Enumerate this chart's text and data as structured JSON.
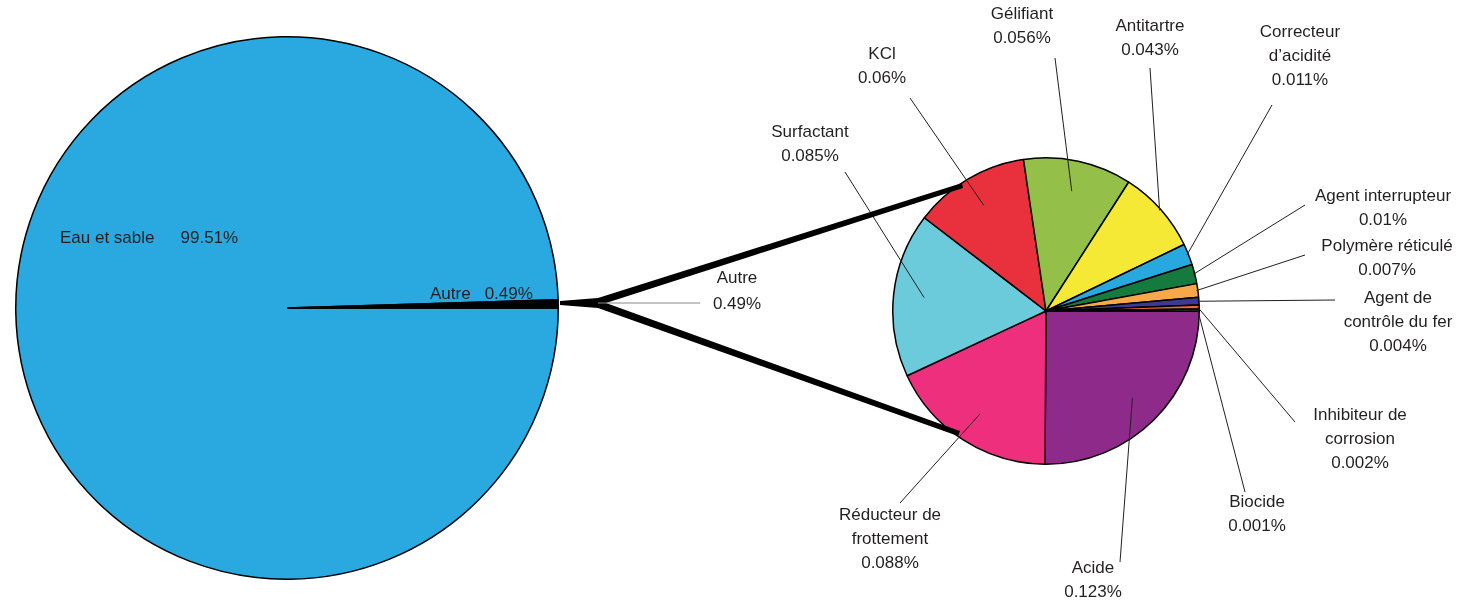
{
  "chart_data": [
    {
      "type": "pie",
      "categories": [
        "Eau et sable",
        "Autre"
      ],
      "values": [
        99.51,
        0.49
      ],
      "colors": [
        "#29a9e0",
        "#000000"
      ],
      "value_labels": [
        "99.51%",
        "0.49%"
      ],
      "legend": false
    },
    {
      "type": "pie",
      "title": "Autre 0.49%",
      "categories": [
        "Acide",
        "Réducteur de frottement",
        "Surfactant",
        "KCl",
        "Gélifiant",
        "Antitartre",
        "Correcteur d’acidité",
        "Agent interrupteur",
        "Polymère réticulé",
        "Agent de contrôle du fer",
        "Inhibiteur de corrosion",
        "Biocide"
      ],
      "values": [
        0.123,
        0.088,
        0.085,
        0.06,
        0.056,
        0.043,
        0.011,
        0.01,
        0.007,
        0.004,
        0.002,
        0.001
      ],
      "colors": [
        "#8e2a8a",
        "#ee2f7d",
        "#6ccbdb",
        "#e8313c",
        "#94bf48",
        "#f5e935",
        "#27a8df",
        "#147a3e",
        "#f7a94a",
        "#3c3a93",
        "#f26532",
        "#4db748"
      ],
      "value_labels": [
        "0.123%",
        "0.088%",
        "0.085%",
        "0.06%",
        "0.056%",
        "0.043%",
        "0.011%",
        "0.01%",
        "0.007%",
        "0.004%",
        "0.002%",
        "0.001%"
      ],
      "legend": false
    }
  ]
}
